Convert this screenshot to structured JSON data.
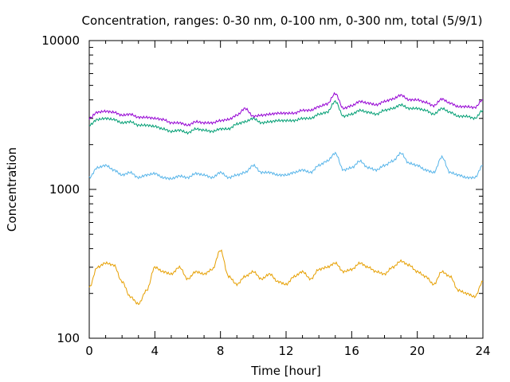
{
  "chart_data": {
    "type": "line",
    "title": "Concentration, ranges: 0-30 nm, 0-100 nm, 0-300 nm, total (5/9/1)",
    "xlabel": "Time [hour]",
    "ylabel": "Concentration",
    "xlim": [
      0,
      24
    ],
    "ylim": [
      100,
      10000
    ],
    "yscale": "log",
    "grid": false,
    "legend": "none",
    "x_ticks": [
      0,
      4,
      8,
      12,
      16,
      20,
      24
    ],
    "y_ticks": [
      100,
      1000,
      10000
    ],
    "x_tick_labels": [
      "0",
      "4",
      "8",
      "12",
      "16",
      "20",
      "24"
    ],
    "y_tick_labels": [
      "100",
      "1000",
      "10000"
    ],
    "x": [
      0,
      0.5,
      1,
      1.5,
      2,
      2.5,
      3,
      3.5,
      4,
      4.5,
      5,
      5.5,
      6,
      6.5,
      7,
      7.5,
      8,
      8.5,
      9,
      9.5,
      10,
      10.5,
      11,
      11.5,
      12,
      12.5,
      13,
      13.5,
      14,
      14.5,
      15,
      15.5,
      16,
      16.5,
      17,
      17.5,
      18,
      18.5,
      19,
      19.5,
      20,
      20.5,
      21,
      21.5,
      22,
      22.5,
      23,
      23.5,
      24
    ],
    "series": [
      {
        "color": "#e69f00",
        "values": [
          220,
          300,
          320,
          310,
          240,
          190,
          170,
          210,
          300,
          280,
          270,
          300,
          250,
          280,
          270,
          290,
          390,
          260,
          230,
          260,
          280,
          250,
          270,
          240,
          230,
          260,
          280,
          250,
          290,
          300,
          320,
          280,
          290,
          320,
          300,
          280,
          270,
          300,
          330,
          310,
          280,
          260,
          230,
          280,
          260,
          210,
          200,
          190,
          240
        ]
      },
      {
        "color": "#56b4e9",
        "values": [
          1200,
          1400,
          1450,
          1350,
          1250,
          1300,
          1200,
          1250,
          1280,
          1200,
          1180,
          1230,
          1200,
          1280,
          1250,
          1200,
          1300,
          1200,
          1250,
          1300,
          1450,
          1300,
          1300,
          1250,
          1250,
          1300,
          1350,
          1300,
          1450,
          1550,
          1750,
          1350,
          1400,
          1550,
          1400,
          1350,
          1450,
          1550,
          1750,
          1500,
          1450,
          1350,
          1300,
          1650,
          1300,
          1250,
          1200,
          1200,
          1450
        ]
      },
      {
        "color": "#009e73",
        "values": [
          2700,
          2950,
          3000,
          2950,
          2800,
          2850,
          2700,
          2700,
          2650,
          2550,
          2450,
          2500,
          2400,
          2550,
          2500,
          2450,
          2550,
          2550,
          2750,
          2850,
          3000,
          2800,
          2850,
          2900,
          2900,
          2900,
          3000,
          3000,
          3200,
          3300,
          3900,
          3100,
          3200,
          3400,
          3300,
          3200,
          3400,
          3500,
          3700,
          3500,
          3500,
          3400,
          3200,
          3500,
          3300,
          3100,
          3100,
          3000,
          3400
        ]
      },
      {
        "color": "#9400d3",
        "values": [
          3000,
          3300,
          3350,
          3300,
          3150,
          3200,
          3050,
          3050,
          3000,
          2950,
          2800,
          2800,
          2700,
          2850,
          2800,
          2800,
          2900,
          2950,
          3150,
          3500,
          3100,
          3150,
          3200,
          3250,
          3250,
          3250,
          3400,
          3400,
          3600,
          3750,
          4400,
          3500,
          3650,
          3900,
          3800,
          3700,
          3900,
          4050,
          4300,
          4000,
          4000,
          3850,
          3650,
          4050,
          3800,
          3600,
          3600,
          3550,
          4000
        ]
      }
    ]
  }
}
